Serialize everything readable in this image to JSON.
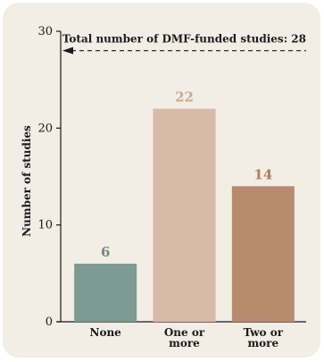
{
  "chart_data": {
    "type": "bar",
    "categories": [
      [
        "None"
      ],
      [
        "One or",
        "more"
      ],
      [
        "Two or",
        "more"
      ]
    ],
    "values": [
      6,
      22,
      14
    ],
    "colors": [
      "#7d9a93",
      "#d7baa7",
      "#b88a6e"
    ],
    "label_colors": [
      "#6e8e87",
      "#c9a894",
      "#b07a5c"
    ],
    "ylabel": "Number of studies",
    "ylim": [
      0,
      30
    ],
    "yticks": [
      0,
      10,
      20,
      30
    ],
    "grid": false,
    "reference_line": {
      "value": 28,
      "label": "Total number of DMF-funded studies: 28",
      "style": "dashed-arrow-left"
    }
  }
}
